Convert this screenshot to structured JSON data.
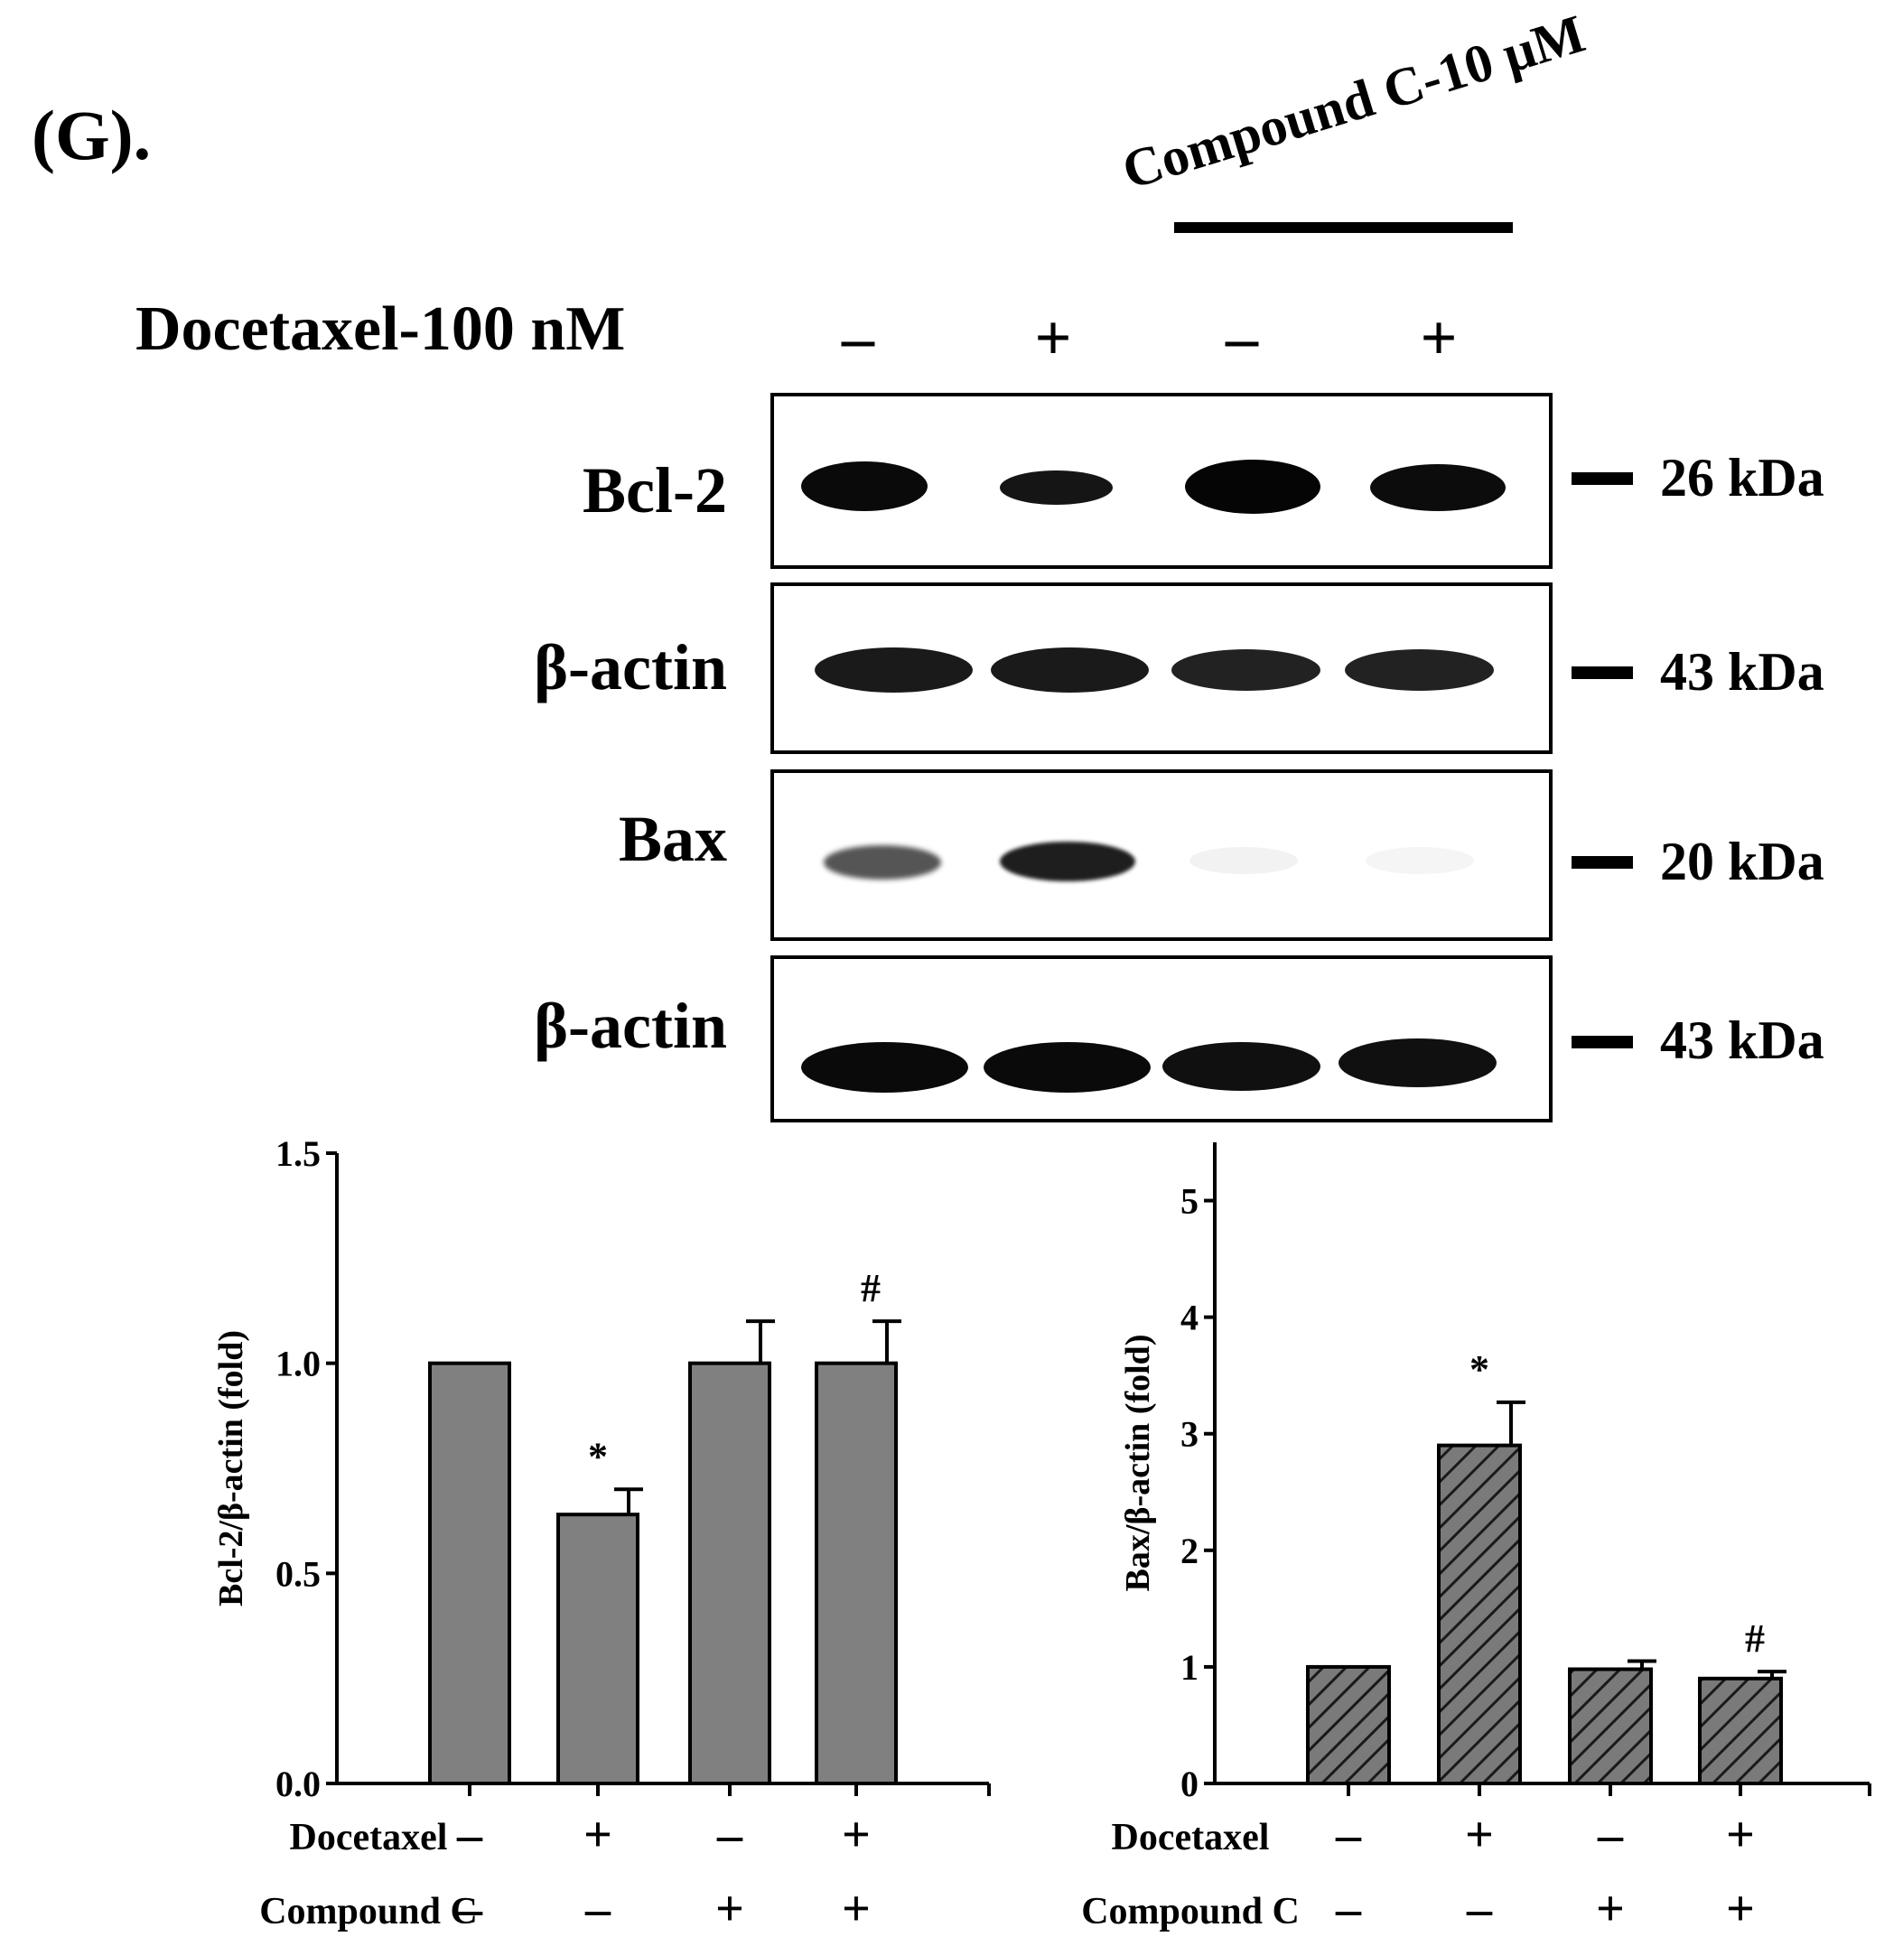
{
  "panel_label": "(G).",
  "western_blot": {
    "compound_label": "Compound C-10 μM",
    "docetaxel_label": "Docetaxel-100 nM",
    "lane_signs": [
      "–",
      "+",
      "–",
      "+"
    ],
    "rows": [
      {
        "label": "Bcl-2",
        "marker": "26 kDa",
        "intensities": [
          0.95,
          0.75,
          1.0,
          0.9
        ]
      },
      {
        "label": "β-actin",
        "marker": "43 kDa",
        "intensities": [
          0.9,
          0.9,
          0.85,
          0.85
        ]
      },
      {
        "label": "Bax",
        "marker": "20 kDa",
        "intensities": [
          0.35,
          0.8,
          0.03,
          0.02
        ]
      },
      {
        "label": "β-actin",
        "marker": "43 kDa",
        "intensities": [
          1.0,
          1.0,
          0.95,
          0.95
        ]
      }
    ]
  },
  "chart_data": [
    {
      "type": "bar",
      "ylabel": "Bcl-2/β-actin (fold)",
      "ylim": [
        0,
        1.5
      ],
      "yticks": [
        "0.0",
        "0.5",
        "1.0",
        "1.5"
      ],
      "values": [
        1.0,
        0.64,
        1.0,
        1.0
      ],
      "errors": [
        0,
        0.06,
        0.1,
        0.1
      ],
      "annotations": [
        "",
        "*",
        "",
        "#"
      ],
      "fill": "#808080",
      "hatched": false,
      "row_labels": [
        "Docetaxel",
        "Compound C"
      ],
      "docetaxel": [
        "–",
        "+",
        "–",
        "+"
      ],
      "compound_c": [
        "–",
        "–",
        "+",
        "+"
      ]
    },
    {
      "type": "bar",
      "ylabel": "Bax/β-actin (fold)",
      "ylim": [
        0,
        5.5
      ],
      "yticks": [
        "0",
        "1",
        "2",
        "3",
        "4",
        "5"
      ],
      "values": [
        1.0,
        2.9,
        0.98,
        0.9
      ],
      "errors": [
        0,
        0.37,
        0.07,
        0.06
      ],
      "annotations": [
        "",
        "*",
        "",
        "#"
      ],
      "fill": "#808080",
      "hatched": true,
      "row_labels": [
        "Docetaxel",
        "Compound C"
      ],
      "docetaxel": [
        "–",
        "+",
        "–",
        "+"
      ],
      "compound_c": [
        "–",
        "–",
        "+",
        "+"
      ]
    }
  ]
}
